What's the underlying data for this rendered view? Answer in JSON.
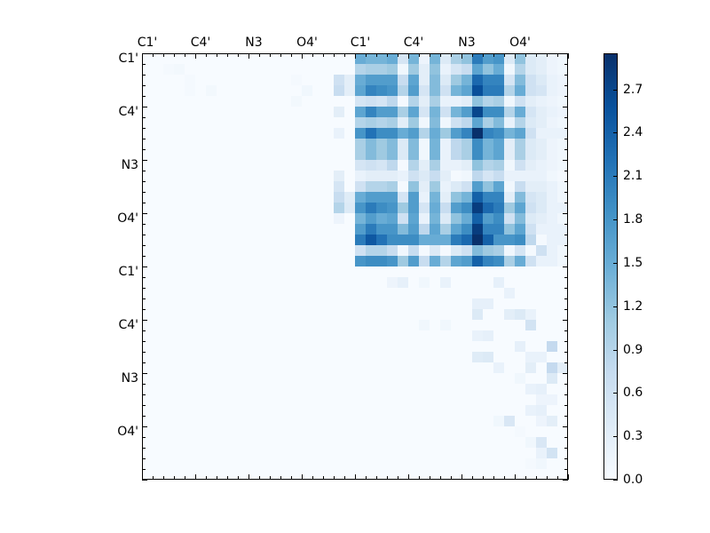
{
  "chart_data": {
    "type": "heatmap",
    "title": "",
    "xlabel": "",
    "ylabel": "",
    "n_rows": 40,
    "n_cols": 40,
    "x_tick_labels": [
      "C1'",
      "C4'",
      "N3",
      "O4'",
      "C1'",
      "C4'",
      "N3",
      "O4'"
    ],
    "x_tick_positions": [
      0.5,
      5.5,
      10.5,
      15.5,
      20.5,
      25.5,
      30.5,
      35.5
    ],
    "y_tick_labels": [
      "C1'",
      "C4'",
      "N3",
      "O4'",
      "C1'",
      "C4'",
      "N3",
      "O4'"
    ],
    "y_tick_positions": [
      0.5,
      5.5,
      10.5,
      15.5,
      20.5,
      25.5,
      30.5,
      35.5
    ],
    "x_axis_position": "top",
    "colormap": "Blues",
    "colorbar": {
      "min": 0.0,
      "max": 2.95,
      "ticks": [
        0.0,
        0.3,
        0.6,
        0.9,
        1.2,
        1.5,
        1.8,
        2.1,
        2.4,
        2.7
      ]
    },
    "block_upper_right_rows_0_19_cols_20_39": [
      [
        1.5,
        1.4,
        1.4,
        1.5,
        0.5,
        1.4,
        0.15,
        1.4,
        0.4,
        1.0,
        1.2,
        2.1,
        1.7,
        1.8,
        0.4,
        1.2,
        0.4,
        0.3,
        0.15,
        0.1
      ],
      [
        0.9,
        1.0,
        1.0,
        1.1,
        0.1,
        1.1,
        0.3,
        1.2,
        0.2,
        0.5,
        0.7,
        1.6,
        1.2,
        1.5,
        0.1,
        0.9,
        0.4,
        0.3,
        0.15,
        0.1
      ],
      [
        1.5,
        1.7,
        1.7,
        1.7,
        0.7,
        1.6,
        0.3,
        1.3,
        0.4,
        1.1,
        1.4,
        2.3,
        2.0,
        2.0,
        0.5,
        1.3,
        0.6,
        0.4,
        0.2,
        0.15
      ],
      [
        1.6,
        2.0,
        1.9,
        1.8,
        0.9,
        1.7,
        0.5,
        1.3,
        0.6,
        1.4,
        1.6,
        2.6,
        2.1,
        2.1,
        0.9,
        1.5,
        0.6,
        0.5,
        0.2,
        0.15
      ],
      [
        0.5,
        0.6,
        0.5,
        0.8,
        0.05,
        0.9,
        0.3,
        1.0,
        0.2,
        0.2,
        0.3,
        1.2,
        0.9,
        1.0,
        0.1,
        0.6,
        0.3,
        0.2,
        0.15,
        0.1
      ],
      [
        1.6,
        2.0,
        1.7,
        1.7,
        1.0,
        1.6,
        0.5,
        1.4,
        0.6,
        1.4,
        1.7,
        2.7,
        1.9,
        1.9,
        0.9,
        1.5,
        0.5,
        0.3,
        0.2,
        0.15
      ],
      [
        0.9,
        1.0,
        0.9,
        1.0,
        0.3,
        1.1,
        0.1,
        1.3,
        0.1,
        0.6,
        0.8,
        1.6,
        1.0,
        1.3,
        0.2,
        0.9,
        0.4,
        0.3,
        0.15,
        0.1
      ],
      [
        1.8,
        2.2,
        1.9,
        1.9,
        1.5,
        1.7,
        0.9,
        1.5,
        1.1,
        1.7,
        2.0,
        2.95,
        2.0,
        1.9,
        1.4,
        1.6,
        0.6,
        0.2,
        0.2,
        0.2
      ],
      [
        1.0,
        1.3,
        1.1,
        1.3,
        0.4,
        1.3,
        0.1,
        1.4,
        0.2,
        0.8,
        1.0,
        1.9,
        1.4,
        1.6,
        0.3,
        1.0,
        0.4,
        0.3,
        0.15,
        0.1
      ],
      [
        1.0,
        1.3,
        1.1,
        1.3,
        0.4,
        1.3,
        0.1,
        1.4,
        0.2,
        0.8,
        1.0,
        1.9,
        1.4,
        1.6,
        0.3,
        1.0,
        0.4,
        0.3,
        0.15,
        0.1
      ],
      [
        0.5,
        0.6,
        0.5,
        0.8,
        0.05,
        0.9,
        0.3,
        1.0,
        0.2,
        0.2,
        0.3,
        1.2,
        0.9,
        1.0,
        0.1,
        0.6,
        0.3,
        0.2,
        0.15,
        0.1
      ],
      [
        0.2,
        0.3,
        0.3,
        0.3,
        0.2,
        0.6,
        0.4,
        0.7,
        0.3,
        0.05,
        0.1,
        0.8,
        0.5,
        0.7,
        0.2,
        0.2,
        0.2,
        0.2,
        0.1,
        0.05
      ],
      [
        0.6,
        0.9,
        0.9,
        1.0,
        0.05,
        1.2,
        0.3,
        1.1,
        0.2,
        0.4,
        0.6,
        1.7,
        1.2,
        1.6,
        0.1,
        0.7,
        0.3,
        0.3,
        0.2,
        0.1
      ],
      [
        1.5,
        1.7,
        1.7,
        1.7,
        0.5,
        1.7,
        0.2,
        1.4,
        0.3,
        1.2,
        1.4,
        2.4,
        2.0,
        2.0,
        0.3,
        1.3,
        0.5,
        0.4,
        0.2,
        0.1
      ],
      [
        1.8,
        2.1,
        1.9,
        1.8,
        1.1,
        1.7,
        0.5,
        1.5,
        0.7,
        1.7,
        1.9,
        2.8,
        2.3,
        2.1,
        1.1,
        1.6,
        0.6,
        0.4,
        0.2,
        0.2
      ],
      [
        1.4,
        1.7,
        1.5,
        1.6,
        0.6,
        1.6,
        0.2,
        1.4,
        0.4,
        1.2,
        1.5,
        2.4,
        1.7,
        1.9,
        0.6,
        1.3,
        0.4,
        0.3,
        0.2,
        0.1
      ],
      [
        1.7,
        2.1,
        1.8,
        1.8,
        1.3,
        1.7,
        0.8,
        1.6,
        1.0,
        1.6,
        1.9,
        2.8,
        2.0,
        2.0,
        1.2,
        1.6,
        0.6,
        0.2,
        0.2,
        0.2
      ],
      [
        2.1,
        2.5,
        2.2,
        1.9,
        1.9,
        1.9,
        1.5,
        1.5,
        1.5,
        2.1,
        2.3,
        2.95,
        2.4,
        1.8,
        1.8,
        1.9,
        0.8,
        0.05,
        0.2,
        0.2
      ],
      [
        0.6,
        0.9,
        0.9,
        0.7,
        0.1,
        0.7,
        0.05,
        0.4,
        0.05,
        0.4,
        0.6,
        1.3,
        1.1,
        1.0,
        0.1,
        0.5,
        0.05,
        0.6,
        0.2,
        0.1
      ],
      [
        1.8,
        1.9,
        1.9,
        1.8,
        1.1,
        1.7,
        0.7,
        1.5,
        0.9,
        1.6,
        1.7,
        2.4,
        2.0,
        1.9,
        1.0,
        1.5,
        0.6,
        0.2,
        0.2,
        0.1
      ]
    ],
    "notes": "Values elsewhere are near 0 (0.0-0.5); lower-right block (rows 20-39, cols 20-39) sparse light values up to ~0.8; upper-left block (rows 0-19, cols 0-19) near 0 with a few cells up to ~0.9."
  },
  "sparse_cells": [
    [
      1,
      2,
      0.05
    ],
    [
      1,
      3,
      0.08
    ],
    [
      2,
      4,
      0.05
    ],
    [
      3,
      4,
      0.05
    ],
    [
      3,
      6,
      0.08
    ],
    [
      2,
      14,
      0.05
    ],
    [
      3,
      15,
      0.1
    ],
    [
      4,
      14,
      0.08
    ],
    [
      2,
      18,
      0.6
    ],
    [
      3,
      18,
      0.7
    ],
    [
      2,
      19,
      0.3
    ],
    [
      3,
      19,
      0.3
    ],
    [
      5,
      18,
      0.3
    ],
    [
      7,
      18,
      0.2
    ],
    [
      11,
      18,
      0.3
    ],
    [
      12,
      18,
      0.5
    ],
    [
      13,
      18,
      0.7
    ],
    [
      14,
      18,
      0.9
    ],
    [
      13,
      19,
      0.35
    ],
    [
      14,
      19,
      0.4
    ],
    [
      15,
      18,
      0.15
    ],
    [
      21,
      23,
      0.15
    ],
    [
      21,
      24,
      0.25
    ],
    [
      21,
      26,
      0.1
    ],
    [
      21,
      28,
      0.2
    ],
    [
      21,
      33,
      0.25
    ],
    [
      22,
      34,
      0.2
    ],
    [
      23,
      31,
      0.25
    ],
    [
      23,
      32,
      0.25
    ],
    [
      24,
      31,
      0.4
    ],
    [
      24,
      34,
      0.3
    ],
    [
      24,
      35,
      0.4
    ],
    [
      24,
      36,
      0.2
    ],
    [
      25,
      26,
      0.1
    ],
    [
      25,
      28,
      0.1
    ],
    [
      25,
      36,
      0.55
    ],
    [
      26,
      31,
      0.2
    ],
    [
      26,
      32,
      0.25
    ],
    [
      27,
      35,
      0.25
    ],
    [
      27,
      38,
      0.75
    ],
    [
      28,
      31,
      0.35
    ],
    [
      28,
      32,
      0.4
    ],
    [
      28,
      36,
      0.2
    ],
    [
      28,
      37,
      0.2
    ],
    [
      29,
      33,
      0.2
    ],
    [
      29,
      36,
      0.3
    ],
    [
      29,
      38,
      0.75
    ],
    [
      29,
      39,
      0.3
    ],
    [
      30,
      38,
      0.4
    ],
    [
      30,
      35,
      0.1
    ],
    [
      31,
      36,
      0.2
    ],
    [
      31,
      37,
      0.25
    ],
    [
      32,
      37,
      0.15
    ],
    [
      32,
      38,
      0.15
    ],
    [
      33,
      36,
      0.2
    ],
    [
      33,
      37,
      0.25
    ],
    [
      34,
      33,
      0.1
    ],
    [
      34,
      34,
      0.45
    ],
    [
      34,
      37,
      0.15
    ],
    [
      34,
      38,
      0.3
    ],
    [
      35,
      35,
      0.05
    ],
    [
      36,
      36,
      0.1
    ],
    [
      36,
      37,
      0.45
    ],
    [
      37,
      37,
      0.2
    ],
    [
      37,
      38,
      0.55
    ],
    [
      38,
      36,
      0.05
    ],
    [
      38,
      37,
      0.1
    ]
  ]
}
